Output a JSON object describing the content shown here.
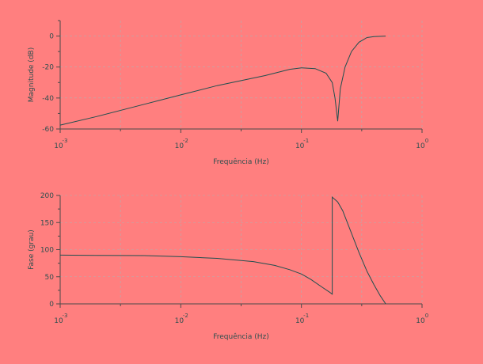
{
  "colors": {
    "background": "#ff7f7f",
    "curve": "#1f4f4f",
    "text": "#2f4f4f",
    "axis": "#4a4a4a",
    "grid": "#b0b0b0"
  },
  "chart_data": [
    {
      "type": "line",
      "xscale": "log",
      "xlabel": "Frequência (Hz)",
      "ylabel": "Magnitude (dB)",
      "xlim": [
        0.001,
        1
      ],
      "ylim": [
        -60,
        10
      ],
      "grid": true,
      "x_tick_labels": [
        {
          "base": "10",
          "exp": "-3",
          "value": 0.001
        },
        {
          "base": "10",
          "exp": "-2",
          "value": 0.01
        },
        {
          "base": "10",
          "exp": "-1",
          "value": 0.1
        },
        {
          "base": "10",
          "exp": "0",
          "value": 1
        }
      ],
      "y_ticks": [
        0,
        -20,
        -40,
        -60
      ],
      "y_tick_labels": [
        "0",
        "-20",
        "-40",
        "-60"
      ],
      "series": [
        {
          "x": [
            0.001,
            0.002,
            0.005,
            0.01,
            0.02,
            0.05,
            0.08,
            0.1,
            0.13,
            0.16,
            0.18,
            0.19,
            0.2,
            0.21,
            0.23,
            0.26,
            0.3,
            0.35,
            0.4,
            0.5
          ],
          "y": [
            -57.5,
            -52,
            -44,
            -38,
            -32,
            -25.5,
            -21.5,
            -20.5,
            -21,
            -24,
            -30,
            -40,
            -55,
            -34,
            -20,
            -10,
            -4,
            -1,
            -0.3,
            0
          ]
        }
      ]
    },
    {
      "type": "line",
      "xscale": "log",
      "xlabel": "Frequência (Hz)",
      "ylabel": "Fase (grau)",
      "xlim": [
        0.001,
        1
      ],
      "ylim": [
        0,
        200
      ],
      "grid": true,
      "x_tick_labels": [
        {
          "base": "10",
          "exp": "-3",
          "value": 0.001
        },
        {
          "base": "10",
          "exp": "-2",
          "value": 0.01
        },
        {
          "base": "10",
          "exp": "-1",
          "value": 0.1
        },
        {
          "base": "10",
          "exp": "0",
          "value": 1
        }
      ],
      "y_ticks": [
        0,
        50,
        100,
        150,
        200
      ],
      "y_tick_labels": [
        "0",
        "50",
        "100",
        "150",
        "200"
      ],
      "series": [
        {
          "x": [
            0.001,
            0.002,
            0.005,
            0.01,
            0.02,
            0.04,
            0.06,
            0.08,
            0.1,
            0.12,
            0.15,
            0.17,
            0.18,
            0.18,
            0.2,
            0.22,
            0.25,
            0.3,
            0.35,
            0.4,
            0.45,
            0.5
          ],
          "y": [
            90,
            89.5,
            89,
            87,
            84,
            78,
            71,
            63,
            55,
            45,
            30,
            22,
            18,
            197,
            188,
            172,
            140,
            95,
            60,
            35,
            15,
            0
          ]
        }
      ]
    }
  ]
}
